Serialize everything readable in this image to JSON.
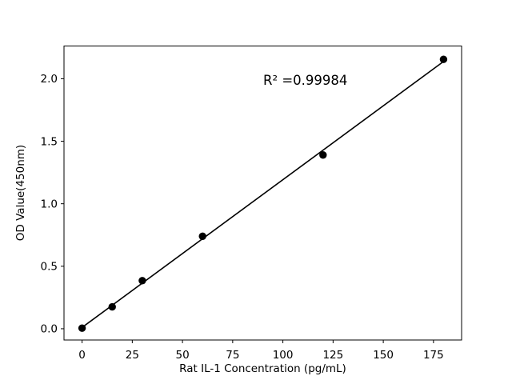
{
  "chart_data": {
    "type": "scatter",
    "title": "",
    "xlabel": "Rat IL-1 Concentration (pg/mL)",
    "ylabel": "OD Value(450nm)",
    "x": [
      0,
      15,
      30,
      60,
      120,
      180
    ],
    "y": [
      0.005,
      0.175,
      0.385,
      0.74,
      1.39,
      2.155
    ],
    "fit_line": true,
    "annotation": {
      "text": "R² =0.99984"
    },
    "xlim": [
      -9,
      189
    ],
    "ylim": [
      -0.09,
      2.262
    ],
    "xticks": [
      0,
      25,
      50,
      75,
      100,
      125,
      150,
      175
    ],
    "xtick_labels": [
      "0",
      "25",
      "50",
      "75",
      "100",
      "125",
      "150",
      "175"
    ],
    "yticks": [
      0.0,
      0.5,
      1.0,
      1.5,
      2.0
    ],
    "ytick_labels": [
      "0.0",
      "0.5",
      "1.0",
      "1.5",
      "2.0"
    ],
    "grid": false,
    "legend": null,
    "marker_color": "#000000",
    "line_color": "#000000",
    "background_color": "#ffffff"
  }
}
